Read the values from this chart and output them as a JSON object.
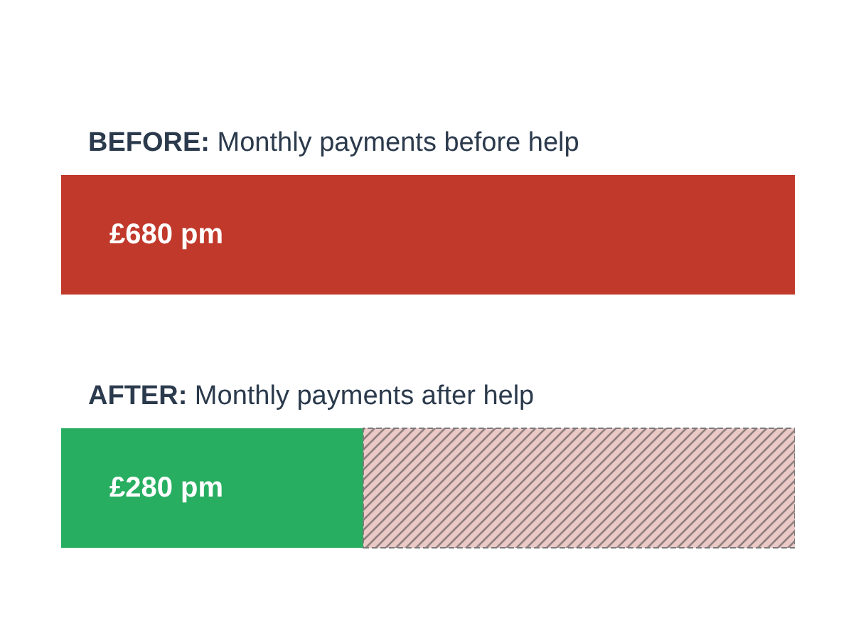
{
  "chart_data": {
    "type": "bar",
    "orientation": "horizontal",
    "stacked": true,
    "categories": [
      "BEFORE: Monthly payments before help",
      "AFTER: Monthly payments after help"
    ],
    "tick_labels": "y",
    "series": [
      {
        "colors": [
          "#c0392b",
          "#27ae60"
        ],
        "values": [
          680,
          280
        ],
        "value_labels": [
          "£680 pm",
          "£280 pm"
        ]
      },
      {
        "color": "#ebc9c6",
        "values": [
          null,
          400
        ],
        "line_style": "dashed"
      }
    ]
  }
}
